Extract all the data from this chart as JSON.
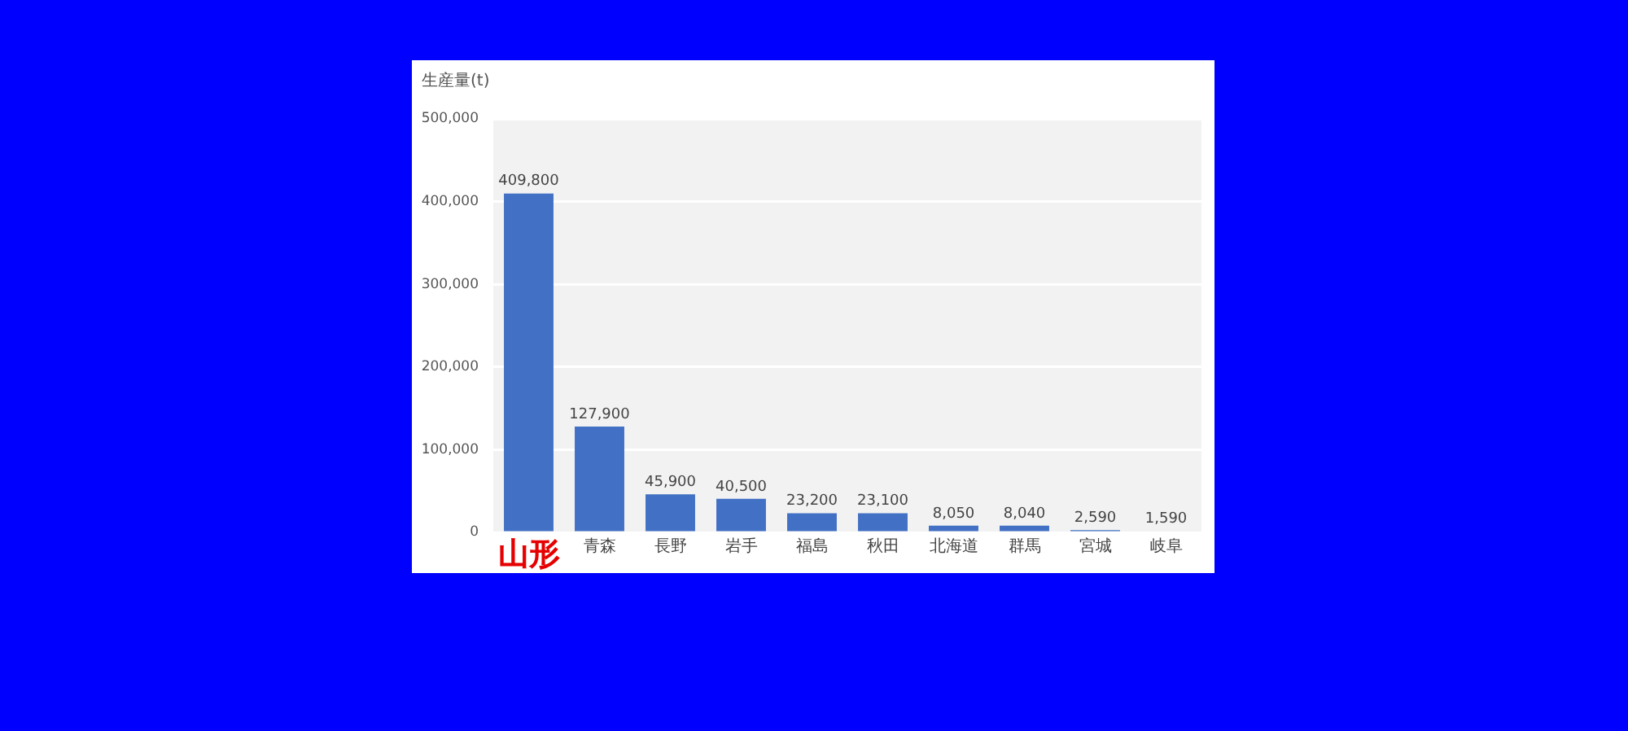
{
  "chart_data": {
    "type": "bar",
    "ylabel": "生産量(t)",
    "categories": [
      "山形",
      "青森",
      "長野",
      "岩手",
      "福島",
      "秋田",
      "北海道",
      "群馬",
      "宮城",
      "岐阜"
    ],
    "values": [
      409800,
      127900,
      45900,
      40500,
      23200,
      23100,
      8050,
      8040,
      2590,
      1590
    ],
    "value_labels": [
      "409,800",
      "127,900",
      "45,900",
      "40,500",
      "23,200",
      "23,100",
      "8,050",
      "8,040",
      "2,590",
      "1,590"
    ],
    "color": "#4170c4",
    "ylim": [
      0,
      500000
    ],
    "yticks": [
      0,
      {
        "value": 100000,
        "label": "100,000"
      },
      {
        "value": 200000,
        "label": "200,000"
      },
      {
        "value": 300000,
        "label": "300,000"
      },
      {
        "value": 400000,
        "label": "400,000"
      },
      {
        "value": 500000,
        "label": "500,000"
      }
    ],
    "grid": "y"
  }
}
